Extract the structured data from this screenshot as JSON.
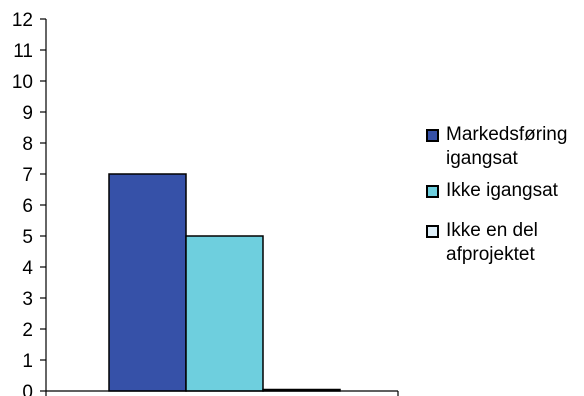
{
  "chart_data": {
    "type": "bar",
    "categories": [
      ""
    ],
    "series": [
      {
        "name": "Markedsføring igangsat",
        "values": [
          7
        ],
        "color": "#3651A8"
      },
      {
        "name": "Ikke igangsat",
        "values": [
          5
        ],
        "color": "#6ECFDE"
      },
      {
        "name": "Ikke en del afprojektet",
        "values": [
          0
        ],
        "color": "#DDEEF8"
      }
    ],
    "title": "",
    "xlabel": "",
    "ylabel": "",
    "ylim": [
      0,
      12
    ],
    "yticks": [
      "0",
      "1",
      "2",
      "3",
      "4",
      "5",
      "6",
      "7",
      "8",
      "9",
      "10",
      "11",
      "12"
    ],
    "grid": false,
    "legend_position": "right"
  },
  "legend": {
    "items": [
      {
        "label_line1": "Markedsføring",
        "label_line2": "igangsat"
      },
      {
        "label_line1": "Ikke igangsat",
        "label_line2": ""
      },
      {
        "label_line1": "Ikke en del",
        "label_line2": "afprojektet"
      }
    ]
  }
}
